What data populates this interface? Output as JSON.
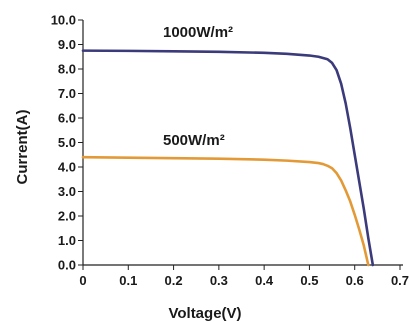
{
  "chart_data": {
    "type": "line",
    "title": "",
    "xlabel": "Voltage(V)",
    "ylabel": "Current(A)",
    "xlim": [
      0,
      0.7
    ],
    "ylim": [
      0,
      10
    ],
    "grid": false,
    "x_ticks": [
      "0",
      "0.1",
      "0.2",
      "0.3",
      "0.4",
      "0.5",
      "0.6",
      "0.7"
    ],
    "y_ticks": [
      "0.0",
      "1.0",
      "2.0",
      "3.0",
      "4.0",
      "5.0",
      "6.0",
      "7.0",
      "8.0",
      "9.0",
      "10.0"
    ],
    "series": [
      {
        "name": "1000W/m²",
        "color": "#3b3a7a",
        "x": [
          0,
          0.1,
          0.2,
          0.3,
          0.4,
          0.45,
          0.5,
          0.52,
          0.54,
          0.55,
          0.56,
          0.57,
          0.58,
          0.59,
          0.6,
          0.61,
          0.62,
          0.63,
          0.64
        ],
        "y": [
          8.75,
          8.74,
          8.72,
          8.7,
          8.66,
          8.62,
          8.55,
          8.5,
          8.4,
          8.25,
          7.95,
          7.4,
          6.6,
          5.6,
          4.5,
          3.4,
          2.3,
          1.1,
          0.0
        ]
      },
      {
        "name": "500W/m²",
        "color": "#e39a36",
        "x": [
          0,
          0.1,
          0.2,
          0.3,
          0.4,
          0.45,
          0.5,
          0.52,
          0.53,
          0.54,
          0.55,
          0.56,
          0.57,
          0.58,
          0.59,
          0.6,
          0.61,
          0.62,
          0.63
        ],
        "y": [
          4.4,
          4.38,
          4.36,
          4.34,
          4.3,
          4.26,
          4.2,
          4.16,
          4.12,
          4.05,
          3.95,
          3.75,
          3.45,
          3.05,
          2.6,
          2.05,
          1.45,
          0.8,
          0.0
        ]
      }
    ]
  }
}
